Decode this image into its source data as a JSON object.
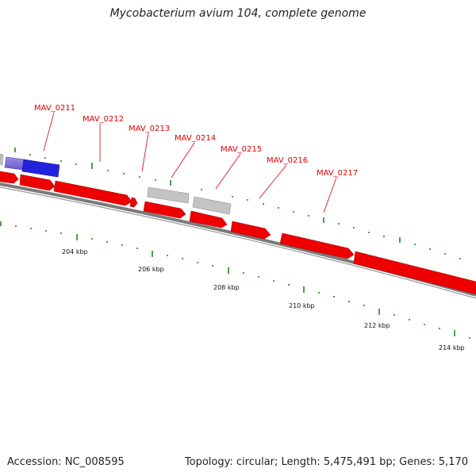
{
  "header": {
    "title": "Mycobacterium avium 104, complete genome"
  },
  "footer": {
    "accession": "Accession: NC_008595",
    "summary": "Topology: circular; Length: 5,475,491 bp; Genes: 5,170"
  },
  "colors": {
    "forward_cds": "#ee0000",
    "blue_feature": "#2222dd",
    "grey_feature": "#bbbbbb",
    "backbone": "#888888",
    "ticks": "#1a8a1a",
    "gene_label": "#e00000"
  },
  "gene_labels": [
    "MAV_0211",
    "MAV_0212",
    "MAV_0213",
    "MAV_0214",
    "MAV_0215",
    "MAV_0216",
    "MAV_0217"
  ],
  "scale_labels": [
    "204 kbp",
    "206 kbp",
    "208 kbp",
    "210 kbp",
    "212 kbp",
    "214 kbp"
  ]
}
